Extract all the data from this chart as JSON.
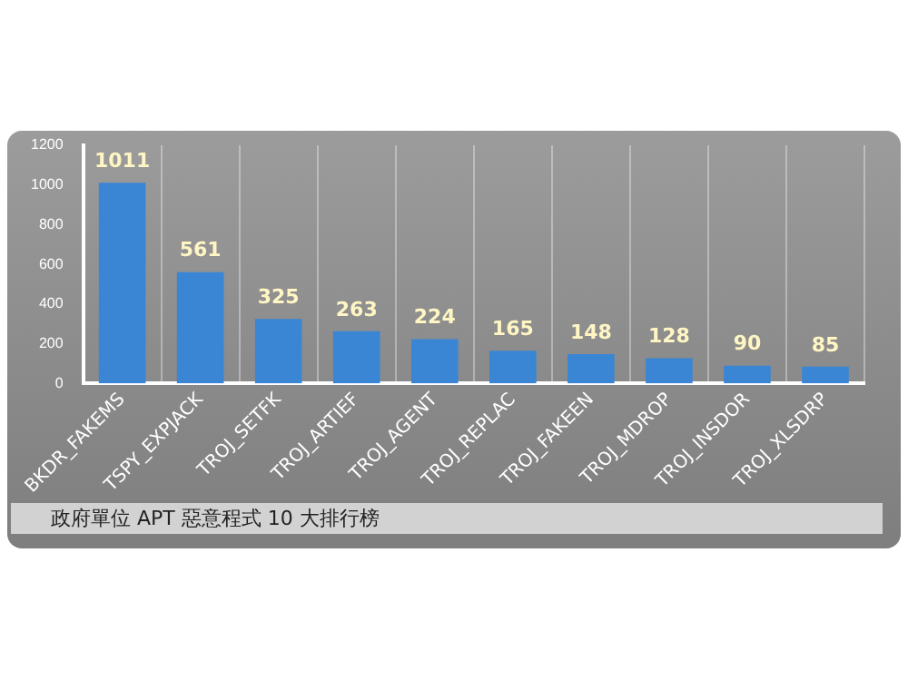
{
  "chart_data": {
    "type": "bar",
    "title": "政府單位 APT 惡意程式 10 大排行榜",
    "categories": [
      "BKDR_FAKEMS",
      "TSPY_EXPJACK",
      "TROJ_SETFK",
      "TROJ_ARTIEF",
      "TROJ_AGENT",
      "TROJ_REPLAC",
      "TROJ_FAKEEN",
      "TROJ_MDROP",
      "TROJ_INSDOR",
      "TROJ_XLSDRP"
    ],
    "values": [
      1011,
      561,
      325,
      263,
      224,
      165,
      148,
      128,
      90,
      85
    ],
    "color": "#3a86d4",
    "ylim": [
      0,
      1200
    ],
    "yticks": [
      0,
      200,
      400,
      600,
      800,
      1000,
      1200
    ],
    "grid": "x",
    "data_labels": true
  }
}
